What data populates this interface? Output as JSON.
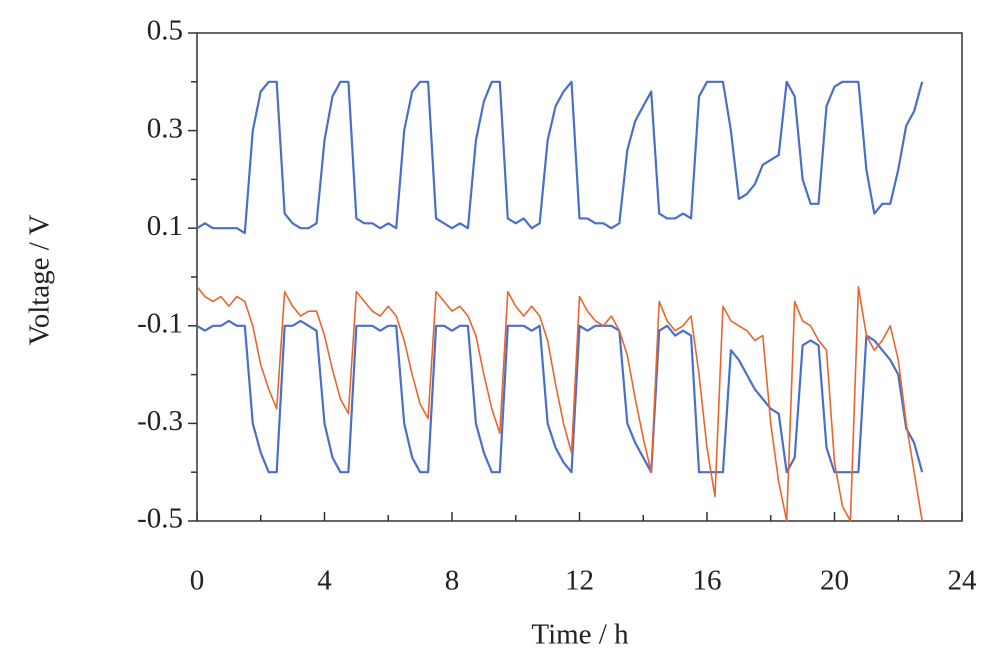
{
  "chart_data": {
    "type": "line",
    "x_label": "Time / h",
    "y_label": "Voltage / V",
    "xlim": [
      0,
      24
    ],
    "xticks": [
      0,
      4,
      8,
      12,
      16,
      20,
      24
    ],
    "xminorticks": [
      2,
      6,
      10,
      14,
      18,
      22
    ],
    "ylim": [
      -0.5,
      0.5
    ],
    "yticks": [
      -0.5,
      -0.3,
      -0.1,
      0.1,
      0.3,
      0.5
    ],
    "yminorticks": [
      -0.4,
      -0.2,
      0,
      0.2,
      0.4
    ],
    "grid": false,
    "x": [
      0,
      0.25,
      0.5,
      0.75,
      1,
      1.25,
      1.5,
      1.75,
      2,
      2.25,
      2.5,
      2.75,
      3,
      3.25,
      3.5,
      3.75,
      4,
      4.25,
      4.5,
      4.75,
      5,
      5.25,
      5.5,
      5.75,
      6,
      6.25,
      6.5,
      6.75,
      7,
      7.25,
      7.5,
      7.75,
      8,
      8.25,
      8.5,
      8.75,
      9,
      9.25,
      9.5,
      9.75,
      10,
      10.25,
      10.5,
      10.75,
      11,
      11.25,
      11.5,
      11.75,
      12,
      12.25,
      12.5,
      12.75,
      13,
      13.25,
      13.5,
      13.75,
      14,
      14.25,
      14.5,
      14.75,
      15,
      15.25,
      15.5,
      15.75,
      16,
      16.25,
      16.5,
      16.75,
      17,
      17.25,
      17.5,
      17.75,
      18,
      18.25,
      18.5,
      18.75,
      19,
      19.25,
      19.5,
      19.75,
      20,
      20.25,
      20.5,
      20.75,
      21,
      21.25,
      21.5,
      21.75,
      22,
      22.25,
      22.5,
      22.75
    ],
    "series": [
      {
        "color": "#4a6fc9",
        "width": 2.2,
        "values": [
          0.1,
          0.11,
          0.1,
          0.1,
          0.1,
          0.1,
          0.09,
          0.3,
          0.38,
          0.4,
          0.4,
          0.13,
          0.11,
          0.1,
          0.1,
          0.11,
          0.28,
          0.37,
          0.4,
          0.4,
          0.12,
          0.11,
          0.11,
          0.1,
          0.11,
          0.1,
          0.3,
          0.38,
          0.4,
          0.4,
          0.12,
          0.11,
          0.1,
          0.11,
          0.1,
          0.28,
          0.36,
          0.4,
          0.4,
          0.12,
          0.11,
          0.12,
          0.1,
          0.11,
          0.28,
          0.35,
          0.38,
          0.4,
          0.12,
          0.12,
          0.11,
          0.11,
          0.1,
          0.11,
          0.26,
          0.32,
          0.35,
          0.38,
          0.13,
          0.12,
          0.12,
          0.13,
          0.12,
          0.37,
          0.4,
          0.4,
          0.4,
          0.3,
          0.16,
          0.17,
          0.19,
          0.23,
          0.24,
          0.25,
          0.4,
          0.37,
          0.2,
          0.15,
          0.15,
          0.35,
          0.39,
          0.4,
          0.4,
          0.4,
          0.22,
          0.13,
          0.15,
          0.15,
          0.22,
          0.31,
          0.34,
          0.4
        ]
      },
      {
        "color": "#4a6fc9",
        "width": 2.2,
        "values": [
          -0.1,
          -0.11,
          -0.1,
          -0.1,
          -0.09,
          -0.1,
          -0.1,
          -0.3,
          -0.36,
          -0.4,
          -0.4,
          -0.1,
          -0.1,
          -0.09,
          -0.1,
          -0.11,
          -0.3,
          -0.37,
          -0.4,
          -0.4,
          -0.1,
          -0.1,
          -0.1,
          -0.11,
          -0.1,
          -0.1,
          -0.3,
          -0.37,
          -0.4,
          -0.4,
          -0.1,
          -0.1,
          -0.11,
          -0.1,
          -0.1,
          -0.3,
          -0.36,
          -0.4,
          -0.4,
          -0.1,
          -0.1,
          -0.1,
          -0.11,
          -0.1,
          -0.3,
          -0.35,
          -0.38,
          -0.4,
          -0.1,
          -0.11,
          -0.1,
          -0.1,
          -0.1,
          -0.11,
          -0.3,
          -0.34,
          -0.37,
          -0.4,
          -0.11,
          -0.1,
          -0.12,
          -0.11,
          -0.12,
          -0.4,
          -0.4,
          -0.4,
          -0.4,
          -0.15,
          -0.17,
          -0.2,
          -0.23,
          -0.25,
          -0.27,
          -0.28,
          -0.4,
          -0.37,
          -0.14,
          -0.13,
          -0.14,
          -0.35,
          -0.4,
          -0.4,
          -0.4,
          -0.4,
          -0.12,
          -0.13,
          -0.15,
          -0.17,
          -0.2,
          -0.31,
          -0.34,
          -0.4
        ]
      },
      {
        "color": "#e8662e",
        "width": 1.6,
        "values": [
          -0.02,
          -0.04,
          -0.05,
          -0.04,
          -0.06,
          -0.04,
          -0.05,
          -0.1,
          -0.18,
          -0.23,
          -0.27,
          -0.03,
          -0.06,
          -0.08,
          -0.07,
          -0.07,
          -0.12,
          -0.19,
          -0.25,
          -0.28,
          -0.03,
          -0.05,
          -0.07,
          -0.08,
          -0.06,
          -0.08,
          -0.13,
          -0.2,
          -0.26,
          -0.29,
          -0.03,
          -0.05,
          -0.07,
          -0.06,
          -0.08,
          -0.12,
          -0.2,
          -0.27,
          -0.32,
          -0.03,
          -0.06,
          -0.08,
          -0.06,
          -0.08,
          -0.13,
          -0.22,
          -0.3,
          -0.36,
          -0.04,
          -0.07,
          -0.09,
          -0.1,
          -0.08,
          -0.11,
          -0.16,
          -0.25,
          -0.33,
          -0.4,
          -0.05,
          -0.09,
          -0.11,
          -0.1,
          -0.08,
          -0.2,
          -0.35,
          -0.45,
          -0.06,
          -0.09,
          -0.1,
          -0.11,
          -0.13,
          -0.12,
          -0.3,
          -0.42,
          -0.5,
          -0.05,
          -0.09,
          -0.1,
          -0.13,
          -0.15,
          -0.38,
          -0.47,
          -0.5,
          -0.02,
          -0.12,
          -0.15,
          -0.13,
          -0.1,
          -0.17,
          -0.3,
          -0.4,
          -0.5
        ]
      }
    ]
  }
}
